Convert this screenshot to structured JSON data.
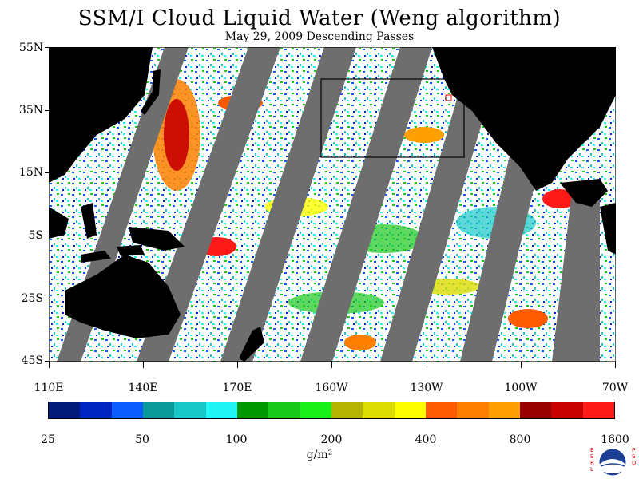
{
  "title": "SSM/I Cloud Liquid Water (Weng algorithm)",
  "subtitle": "May 29, 2009  Descending Passes",
  "lat_labels": [
    "55N",
    "35N",
    "15N",
    "5S",
    "25S",
    "45S"
  ],
  "lon_labels": [
    "110E",
    "140E",
    "170E",
    "160W",
    "130W",
    "100W",
    "70W"
  ],
  "colorbar": {
    "colors": [
      "#001a7a",
      "#0024c0",
      "#0a5cff",
      "#0a9a9a",
      "#18c8c8",
      "#20f4f4",
      "#009600",
      "#1ac81a",
      "#18f018",
      "#b4b400",
      "#dcdc00",
      "#ffff00",
      "#ff5a00",
      "#ff8000",
      "#ffa000",
      "#960000",
      "#c80000",
      "#ff1a1a"
    ],
    "labels": [
      "25",
      "50",
      "100",
      "200",
      "400",
      "800",
      "1600"
    ]
  },
  "units": "g/m²",
  "logo_letters_left": "ESRL",
  "logo_letters_right": "PSD",
  "map_colors": {
    "land": "#000000",
    "no_data_swath_gap": "#6e6e6e",
    "clear": "#ffffff"
  }
}
